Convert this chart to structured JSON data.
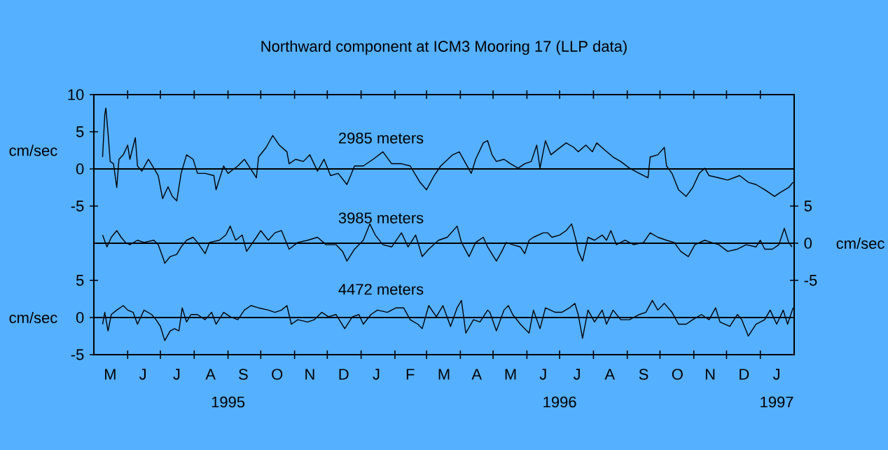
{
  "chart_data": [
    {
      "type": "line",
      "title": "Northward component at ICM3 Mooring 17 (LLP data)",
      "subtitle": "2985 meters",
      "ylabel": "cm/sec",
      "xlim": [
        "1995-05-01",
        "1997-02-01"
      ],
      "ylim": [
        -5,
        10
      ],
      "yticks": [
        -5,
        0,
        5,
        10
      ],
      "tick_labels": "y",
      "ref_lines": [
        {
          "axis": "y",
          "value": 0,
          "color": "#000000"
        }
      ],
      "series": [
        {
          "color": "#000000",
          "x": [
            "1995-05-09",
            "1995-05-11",
            "1995-05-12",
            "1995-05-14",
            "1995-05-16",
            "1995-05-19",
            "1995-05-22",
            "1995-05-24",
            "1995-05-28",
            "1995-06-01",
            "1995-06-03",
            "1995-06-08",
            "1995-06-10",
            "1995-06-14",
            "1995-06-20",
            "1995-06-25",
            "1995-06-29",
            "1995-07-03",
            "1995-07-08",
            "1995-07-12",
            "1995-07-16",
            "1995-07-20",
            "1995-07-25",
            "1995-07-31",
            "1995-08-04",
            "1995-08-11",
            "1995-08-19",
            "1995-08-21",
            "1995-08-28",
            "1995-09-01",
            "1995-09-10",
            "1995-09-16",
            "1995-09-27",
            "1995-09-29",
            "1995-10-06",
            "1995-10-12",
            "1995-10-18",
            "1995-10-25",
            "1995-10-27",
            "1995-11-02",
            "1995-11-09",
            "1995-11-15",
            "1995-11-22",
            "1995-11-28",
            "1995-12-04",
            "1995-12-11",
            "1995-12-19",
            "1995-12-26",
            "1996-01-03",
            "1996-01-12",
            "1996-01-21",
            "1996-01-29",
            "1996-02-07",
            "1996-02-15",
            "1996-02-24",
            "1996-03-01",
            "1996-03-08",
            "1996-03-14",
            "1996-03-25",
            "1996-03-31",
            "1996-04-11",
            "1996-04-15",
            "1996-04-22",
            "1996-04-26",
            "1996-04-30",
            "1996-05-04",
            "1996-05-11",
            "1996-05-17",
            "1996-05-24",
            "1996-05-30",
            "1996-06-05",
            "1996-06-10",
            "1996-06-13",
            "1996-06-18",
            "1996-06-23",
            "1996-06-29",
            "1996-07-07",
            "1996-07-14",
            "1996-07-18",
            "1996-07-25",
            "1996-07-31",
            "1996-08-04",
            "1996-08-11",
            "1996-08-19",
            "1996-08-26",
            "1996-09-03",
            "1996-09-12",
            "1996-09-20",
            "1996-09-22",
            "1996-09-29",
            "1996-10-05",
            "1996-10-07",
            "1996-10-12",
            "1996-10-18",
            "1996-10-25",
            "1996-10-31",
            "1996-11-06",
            "1996-11-11",
            "1996-11-15",
            "1996-11-24",
            "1996-12-02",
            "1996-12-13",
            "1996-12-21",
            "1996-12-28",
            "1997-01-05",
            "1997-01-14",
            "1997-01-20",
            "1997-01-27",
            "1997-01-31"
          ],
          "values": [
            1.6,
            7.3,
            8.2,
            4.8,
            1.0,
            0.7,
            -2.5,
            1.3,
            1.9,
            3.2,
            1.3,
            4.2,
            0.4,
            -0.3,
            1.3,
            0.1,
            -0.9,
            -4.0,
            -2.4,
            -3.7,
            -4.3,
            -0.6,
            1.9,
            1.3,
            -0.6,
            -0.6,
            -0.9,
            -2.8,
            0.4,
            -0.6,
            0.4,
            1.3,
            -1.2,
            1.6,
            2.9,
            4.5,
            3.2,
            2.3,
            0.7,
            1.3,
            1.0,
            1.9,
            -0.3,
            1.3,
            -0.9,
            -0.6,
            -2.1,
            0.4,
            0.4,
            1.3,
            2.3,
            0.7,
            0.7,
            0.4,
            -1.8,
            -2.8,
            -0.9,
            0.4,
            1.9,
            2.3,
            -0.6,
            1.3,
            3.5,
            3.8,
            1.9,
            1.0,
            1.3,
            0.7,
            0.1,
            0.7,
            1.0,
            3.2,
            0.1,
            3.8,
            1.9,
            2.6,
            3.5,
            2.9,
            2.3,
            3.2,
            2.3,
            3.5,
            2.6,
            1.6,
            1.0,
            0.1,
            -0.6,
            -1.2,
            1.6,
            1.9,
            2.9,
            0.4,
            -0.6,
            -2.8,
            -3.7,
            -2.5,
            -0.6,
            0.1,
            -0.9,
            -1.2,
            -1.5,
            -0.9,
            -1.8,
            -2.1,
            -2.8,
            -3.7,
            -3.1,
            -2.5,
            -1.8
          ]
        }
      ]
    },
    {
      "type": "line",
      "title": "3985 meters",
      "y2label": "cm/sec",
      "tick_labels": "y",
      "xlim": [
        "1995-05-01",
        "1997-02-01"
      ],
      "y2lim": [
        -5,
        5
      ],
      "y2ticks": [
        -5,
        0,
        5
      ],
      "ref_lines": [
        {
          "axis": "y2",
          "value": 0,
          "color": "#000000"
        }
      ],
      "series": [
        {
          "axis": "y2",
          "color": "#000000",
          "x": [
            "1995-05-09",
            "1995-05-13",
            "1995-05-17",
            "1995-05-22",
            "1995-05-26",
            "1995-05-30",
            "1995-06-03",
            "1995-06-10",
            "1995-06-16",
            "1995-06-25",
            "1995-06-29",
            "1995-07-03",
            "1995-07-05",
            "1995-07-10",
            "1995-07-16",
            "1995-07-20",
            "1995-07-25",
            "1995-07-31",
            "1995-08-04",
            "1995-08-11",
            "1995-08-15",
            "1995-08-24",
            "1995-08-30",
            "1995-09-03",
            "1995-09-08",
            "1995-09-14",
            "1995-09-18",
            "1995-09-27",
            "1995-10-01",
            "1995-10-08",
            "1995-10-14",
            "1995-10-20",
            "1995-10-27",
            "1995-11-04",
            "1995-11-13",
            "1995-11-22",
            "1995-11-30",
            "1995-12-09",
            "1995-12-15",
            "1995-12-19",
            "1995-12-26",
            "1996-01-03",
            "1996-01-09",
            "1996-01-14",
            "1996-01-21",
            "1996-01-29",
            "1996-02-07",
            "1996-02-13",
            "1996-02-20",
            "1996-02-26",
            "1996-03-03",
            "1996-03-12",
            "1996-03-20",
            "1996-03-29",
            "1996-04-02",
            "1996-04-09",
            "1996-04-15",
            "1996-04-22",
            "1996-04-26",
            "1996-05-04",
            "1996-05-09",
            "1996-05-13",
            "1996-05-19",
            "1996-05-26",
            "1996-05-30",
            "1996-06-03",
            "1996-06-07",
            "1996-06-16",
            "1996-06-20",
            "1996-06-24",
            "1996-07-01",
            "1996-07-07",
            "1996-07-12",
            "1996-07-16",
            "1996-07-18",
            "1996-07-22",
            "1996-07-27",
            "1996-08-02",
            "1996-08-09",
            "1996-08-13",
            "1996-08-17",
            "1996-08-22",
            "1996-08-30",
            "1996-09-07",
            "1996-09-16",
            "1996-09-22",
            "1996-09-29",
            "1996-10-07",
            "1996-10-14",
            "1996-10-20",
            "1996-10-27",
            "1996-11-02",
            "1996-11-11",
            "1996-11-17",
            "1996-11-24",
            "1996-12-02",
            "1996-12-11",
            "1996-12-19",
            "1996-12-28",
            "1997-01-01",
            "1997-01-05",
            "1997-01-12",
            "1997-01-18",
            "1997-01-23",
            "1997-01-27",
            "1997-01-30"
          ],
          "values": [
            1.1,
            -0.5,
            0.8,
            1.7,
            0.8,
            0.1,
            -0.2,
            0.4,
            0.1,
            0.4,
            -0.2,
            -1.8,
            -2.7,
            -1.8,
            -1.5,
            -0.5,
            0.4,
            0.8,
            0.1,
            -1.4,
            0.1,
            0.4,
            1.1,
            2.3,
            0.4,
            1.1,
            -1.1,
            0.8,
            1.7,
            0.4,
            1.4,
            1.7,
            -0.8,
            0.1,
            0.4,
            0.8,
            -0.2,
            -0.2,
            -1.1,
            -2.4,
            -0.8,
            0.4,
            2.6,
            1.1,
            -0.2,
            -0.5,
            1.4,
            -0.5,
            1.1,
            -1.8,
            -0.8,
            0.4,
            0.8,
            2.3,
            0.1,
            -1.8,
            0.1,
            0.8,
            -0.5,
            -2.4,
            -1.1,
            0.1,
            -0.2,
            -0.5,
            -1.4,
            0.4,
            0.8,
            1.4,
            1.4,
            0.8,
            1.1,
            1.7,
            2.6,
            0.4,
            -1.1,
            -2.4,
            0.8,
            0.4,
            1.1,
            0.4,
            1.7,
            -0.2,
            0.4,
            -0.2,
            0.1,
            1.4,
            0.8,
            0.4,
            0.1,
            -1.1,
            -1.8,
            -0.2,
            0.4,
            0.1,
            -0.2,
            -1.1,
            -0.8,
            -0.2,
            -0.5,
            0.4,
            -0.8,
            -0.8,
            -0.2,
            2.0,
            0.1,
            -0.5
          ]
        }
      ]
    },
    {
      "type": "line",
      "title": "4472 meters",
      "ylabel": "cm/sec",
      "xlim": [
        "1995-05-01",
        "1997-02-01"
      ],
      "xticks": [
        {
          "value": "1995-06-01",
          "label": null
        },
        {
          "value": "1995-07-01",
          "label": null
        },
        {
          "value": "1995-08-01",
          "label": null
        },
        {
          "value": "1995-09-01",
          "label": "1995"
        },
        {
          "value": "1995-10-01",
          "label": null
        },
        {
          "value": "1995-11-01",
          "label": null
        },
        {
          "value": "1995-12-01",
          "label": null
        },
        {
          "value": "1996-01-01",
          "label": null
        },
        {
          "value": "1996-02-01",
          "label": null
        },
        {
          "value": "1996-03-01",
          "label": null
        },
        {
          "value": "1996-04-01",
          "label": null
        },
        {
          "value": "1996-05-01",
          "label": null
        },
        {
          "value": "1996-06-01",
          "label": null
        },
        {
          "value": "1996-07-01",
          "label": "1996"
        },
        {
          "value": "1996-08-01",
          "label": null
        },
        {
          "value": "1996-09-01",
          "label": null
        },
        {
          "value": "1996-10-01",
          "label": null
        },
        {
          "value": "1996-11-01",
          "label": null
        },
        {
          "value": "1996-12-01",
          "label": null
        },
        {
          "value": "1997-01-01",
          "label": null
        },
        {
          "value": "1997-01-16",
          "label": "1997"
        }
      ],
      "annotations": [
        "M",
        "J",
        "J",
        "A",
        "S",
        "O",
        "N",
        "D",
        "J",
        "F",
        "M",
        "A",
        "M",
        "J",
        "J",
        "A",
        "S",
        "O",
        "N",
        "D",
        "J"
      ],
      "ylim": [
        -5,
        5
      ],
      "yticks": [
        -5,
        0,
        5
      ],
      "ref_lines": [
        {
          "axis": "y",
          "value": 0,
          "color": "#000000"
        }
      ],
      "series": [
        {
          "color": "#000000",
          "x": [
            "1995-05-09",
            "1995-05-11",
            "1995-05-14",
            "1995-05-17",
            "1995-05-22",
            "1995-05-28",
            "1995-06-01",
            "1995-06-06",
            "1995-06-10",
            "1995-06-16",
            "1995-06-23",
            "1995-06-27",
            "1995-07-01",
            "1995-07-05",
            "1995-07-10",
            "1995-07-14",
            "1995-07-18",
            "1995-07-21",
            "1995-07-25",
            "1995-07-29",
            "1995-08-04",
            "1995-08-11",
            "1995-08-17",
            "1995-08-21",
            "1995-08-28",
            "1995-09-03",
            "1995-09-10",
            "1995-09-16",
            "1995-09-22",
            "1995-09-29",
            "1995-10-08",
            "1995-10-14",
            "1995-10-20",
            "1995-10-25",
            "1995-10-29",
            "1995-11-04",
            "1995-11-13",
            "1995-11-19",
            "1995-11-26",
            "1995-12-02",
            "1995-12-09",
            "1995-12-17",
            "1995-12-24",
            "1995-12-30",
            "1996-01-03",
            "1996-01-10",
            "1996-01-16",
            "1996-01-25",
            "1996-02-02",
            "1996-02-09",
            "1996-02-15",
            "1996-02-22",
            "1996-02-26",
            "1996-03-03",
            "1996-03-10",
            "1996-03-16",
            "1996-03-23",
            "1996-03-29",
            "1996-04-02",
            "1996-04-06",
            "1996-04-13",
            "1996-04-19",
            "1996-04-26",
            "1996-04-28",
            "1996-05-04",
            "1996-05-11",
            "1996-05-15",
            "1996-05-19",
            "1996-05-26",
            "1996-06-03",
            "1996-06-07",
            "1996-06-13",
            "1996-06-18",
            "1996-06-27",
            "1996-07-03",
            "1996-07-10",
            "1996-07-15",
            "1996-07-18",
            "1996-07-22",
            "1996-07-27",
            "1996-08-02",
            "1996-08-09",
            "1996-08-13",
            "1996-08-19",
            "1996-08-26",
            "1996-09-03",
            "1996-09-12",
            "1996-09-18",
            "1996-09-24",
            "1996-09-29",
            "1996-10-05",
            "1996-10-12",
            "1996-10-18",
            "1996-10-25",
            "1996-10-31",
            "1996-11-08",
            "1996-11-15",
            "1996-11-21",
            "1996-11-25",
            "1996-12-04",
            "1996-12-11",
            "1996-12-15",
            "1996-12-21",
            "1996-12-28",
            "1997-01-05",
            "1997-01-10",
            "1997-01-16",
            "1997-01-22",
            "1997-01-26",
            "1997-01-31"
          ],
          "values": [
            -0.9,
            0.7,
            -1.8,
            0.4,
            1.0,
            1.6,
            1.0,
            0.7,
            -0.9,
            1.0,
            0.4,
            -0.3,
            -1.2,
            -3.1,
            -1.8,
            -1.5,
            -1.8,
            1.3,
            -0.6,
            0.4,
            0.4,
            -0.3,
            0.7,
            -0.9,
            0.7,
            0.1,
            -0.3,
            1.0,
            1.6,
            1.3,
            1.0,
            0.7,
            1.0,
            1.6,
            -0.9,
            -0.3,
            -0.6,
            -0.3,
            0.7,
            0.1,
            0.4,
            -1.5,
            0.1,
            0.4,
            -0.9,
            0.4,
            1.0,
            0.7,
            1.3,
            1.3,
            -0.3,
            -0.9,
            -1.5,
            1.6,
            0.1,
            1.6,
            -1.2,
            1.3,
            2.3,
            -2.1,
            -0.3,
            -0.6,
            1.0,
            0.7,
            -1.8,
            1.0,
            1.6,
            0.4,
            -0.9,
            -2.1,
            1.0,
            -1.5,
            1.3,
            0.7,
            0.7,
            1.3,
            1.9,
            0.4,
            -2.8,
            1.0,
            -0.6,
            1.0,
            -0.9,
            1.0,
            -0.3,
            -0.3,
            0.4,
            0.7,
            2.3,
            1.0,
            1.9,
            0.7,
            -0.9,
            -0.9,
            -0.3,
            0.4,
            -0.3,
            1.3,
            -0.6,
            -1.2,
            0.4,
            -0.3,
            -2.5,
            -0.9,
            -0.3,
            1.0,
            -0.9,
            1.0,
            -0.9,
            1.3
          ]
        }
      ]
    }
  ]
}
